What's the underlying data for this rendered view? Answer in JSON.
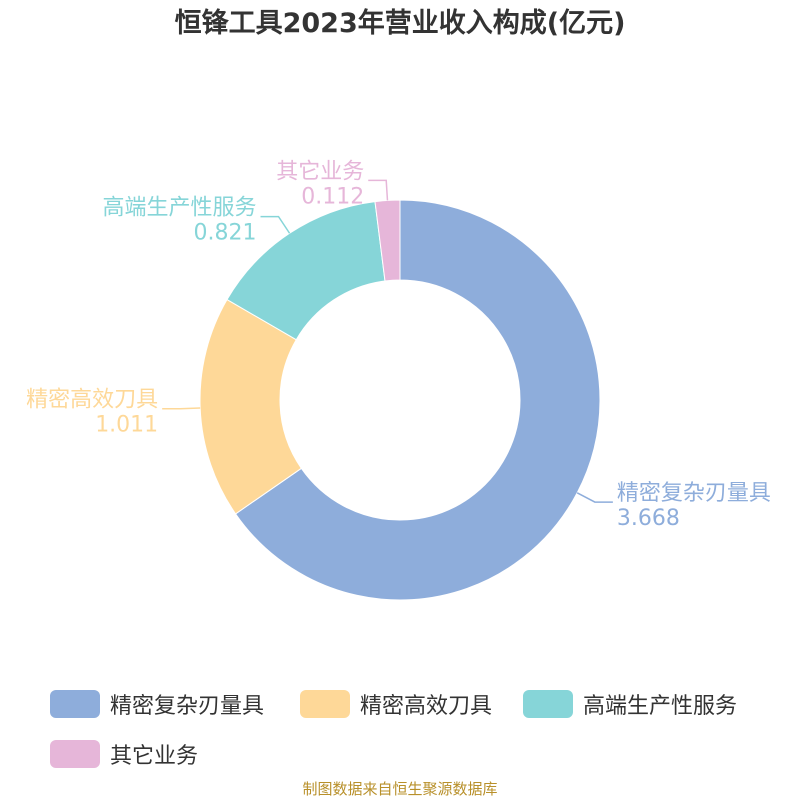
{
  "title": "恒锋工具2023年营业收入构成(亿元)",
  "source": "制图数据来自恒生聚源数据库",
  "chart_data": {
    "type": "pie",
    "style": "donut",
    "title": "恒锋工具2023年营业收入构成(亿元)",
    "categories": [
      "精密复杂刃量具",
      "精密高效刀具",
      "高端生产性服务",
      "其它业务"
    ],
    "values": [
      3.668,
      1.011,
      0.821,
      0.112
    ],
    "value_labels": [
      "3.668",
      "1.011",
      "0.821",
      "0.112"
    ],
    "colors": [
      "#8eaddb",
      "#fed898",
      "#86d5d8",
      "#e6b6d9"
    ],
    "legend_position": "bottom"
  }
}
